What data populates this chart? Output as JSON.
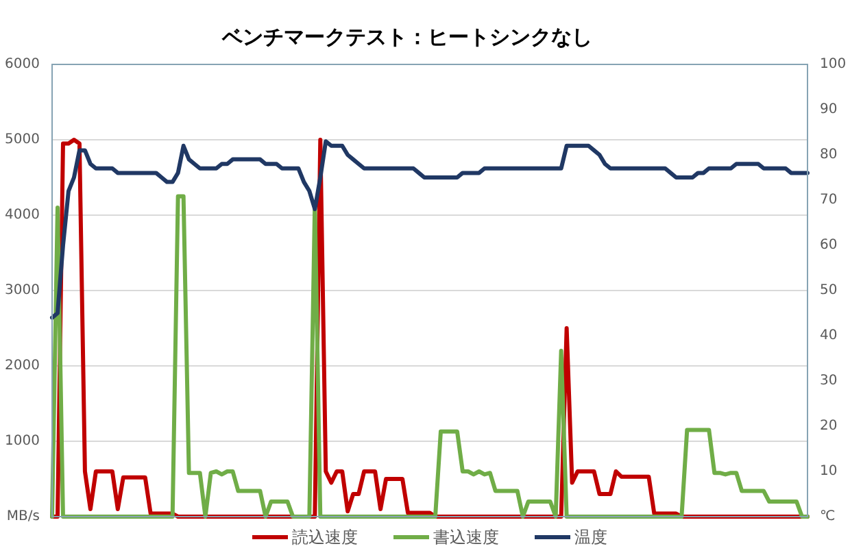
{
  "chart_data": {
    "type": "line",
    "title": "ベンチマークテスト：ヒートシンクなし",
    "categories": [
      null,
      null,
      null,
      null,
      null,
      null,
      null,
      null,
      null,
      null,
      null,
      null,
      null,
      null,
      null,
      null,
      null,
      null,
      null,
      null,
      null,
      null,
      null,
      null,
      null,
      null,
      null,
      null,
      null,
      null,
      null,
      null,
      null,
      null,
      null,
      null,
      null,
      null,
      null,
      null,
      null,
      null,
      null,
      null,
      null,
      null,
      null,
      null,
      null,
      null,
      null,
      null,
      null,
      null,
      null,
      null,
      null,
      null,
      null,
      null,
      null,
      null,
      null,
      null,
      null,
      null,
      null,
      null,
      null,
      null,
      null,
      null,
      null,
      null,
      null,
      null,
      null,
      null,
      null,
      null,
      null,
      null,
      null,
      null,
      null,
      null,
      null,
      null,
      null,
      null,
      null,
      null,
      null,
      null,
      null,
      null,
      null,
      null,
      null,
      null,
      null,
      null,
      null,
      null,
      null,
      null,
      null,
      null,
      null,
      null,
      null,
      null,
      null,
      null,
      null,
      null,
      null,
      null,
      null,
      null,
      null,
      null,
      null,
      null,
      null,
      null,
      null,
      null,
      null,
      null,
      null,
      null,
      null,
      null,
      null,
      null,
      null,
      null,
      null
    ],
    "series": [
      {
        "name": "読込速度",
        "color": "#c00000",
        "values": [
          0,
          0,
          4950,
          4950,
          5000,
          4950,
          600,
          100,
          600,
          600,
          600,
          600,
          100,
          520,
          520,
          520,
          520,
          520,
          40,
          40,
          40,
          40,
          40,
          0,
          0,
          0,
          0,
          0,
          0,
          0,
          0,
          0,
          0,
          0,
          0,
          0,
          0,
          0,
          0,
          0,
          0,
          0,
          0,
          0,
          0,
          0,
          0,
          0,
          0,
          5000,
          600,
          450,
          600,
          600,
          70,
          300,
          300,
          600,
          600,
          600,
          100,
          500,
          500,
          500,
          500,
          50,
          50,
          50,
          50,
          50,
          0,
          0,
          0,
          0,
          0,
          0,
          0,
          0,
          0,
          0,
          0,
          0,
          0,
          0,
          0,
          0,
          0,
          0,
          0,
          0,
          0,
          0,
          0,
          0,
          2500,
          450,
          600,
          600,
          600,
          600,
          300,
          300,
          300,
          600,
          530,
          530,
          530,
          530,
          530,
          530,
          40,
          40,
          40,
          40,
          40,
          0,
          0,
          0,
          0,
          0,
          0,
          0,
          0,
          0,
          0,
          0,
          0,
          0,
          0,
          0,
          0,
          0,
          0,
          0,
          0,
          0,
          0,
          0,
          0
        ]
      },
      {
        "name": "書込速度",
        "color": "#70ad47",
        "values": [
          0,
          4100,
          0,
          0,
          0,
          0,
          0,
          0,
          0,
          0,
          0,
          0,
          0,
          0,
          0,
          0,
          0,
          0,
          0,
          0,
          0,
          0,
          0,
          4250,
          4250,
          580,
          580,
          580,
          0,
          580,
          600,
          560,
          600,
          600,
          340,
          340,
          340,
          340,
          340,
          0,
          200,
          200,
          200,
          200,
          0,
          0,
          0,
          0,
          4150,
          0,
          0,
          0,
          0,
          0,
          0,
          0,
          0,
          0,
          0,
          0,
          0,
          0,
          0,
          0,
          0,
          0,
          0,
          0,
          0,
          0,
          0,
          1130,
          1130,
          1130,
          1130,
          600,
          600,
          560,
          600,
          560,
          580,
          340,
          340,
          340,
          340,
          340,
          0,
          200,
          200,
          200,
          200,
          200,
          0,
          2200,
          0,
          0,
          0,
          0,
          0,
          0,
          0,
          0,
          0,
          0,
          0,
          0,
          0,
          0,
          0,
          0,
          0,
          0,
          0,
          0,
          0,
          0,
          1150,
          1150,
          1150,
          1150,
          1150,
          580,
          580,
          560,
          580,
          580,
          340,
          340,
          340,
          340,
          340,
          200,
          200,
          200,
          200,
          200,
          200,
          0,
          0
        ]
      },
      {
        "name": "温度",
        "color": "#203864",
        "axis": "y2",
        "values": [
          44,
          45,
          60,
          72,
          75,
          81,
          81,
          78,
          77,
          77,
          77,
          77,
          76,
          76,
          76,
          76,
          76,
          76,
          76,
          76,
          75,
          74,
          74,
          76,
          82,
          79,
          78,
          77,
          77,
          77,
          77,
          78,
          78,
          79,
          79,
          79,
          79,
          79,
          79,
          78,
          78,
          78,
          77,
          77,
          77,
          77,
          74,
          72,
          68,
          75,
          83,
          82,
          82,
          82,
          80,
          79,
          78,
          77,
          77,
          77,
          77,
          77,
          77,
          77,
          77,
          77,
          77,
          76,
          75,
          75,
          75,
          75,
          75,
          75,
          75,
          76,
          76,
          76,
          76,
          77,
          77,
          77,
          77,
          77,
          77,
          77,
          77,
          77,
          77,
          77,
          77,
          77,
          77,
          77,
          82,
          82,
          82,
          82,
          82,
          81,
          80,
          78,
          77,
          77,
          77,
          77,
          77,
          77,
          77,
          77,
          77,
          77,
          77,
          76,
          75,
          75,
          75,
          75,
          76,
          76,
          77,
          77,
          77,
          77,
          77,
          78,
          78,
          78,
          78,
          78,
          77,
          77,
          77,
          77,
          77,
          76,
          76,
          76,
          76
        ]
      }
    ],
    "ylim": [
      0,
      6000
    ],
    "yticks": [
      {
        "value": 0,
        "label": "MB/s"
      },
      1000,
      2000,
      3000,
      4000,
      5000,
      6000
    ],
    "y2lim": [
      0,
      100
    ],
    "y2ticks": [
      {
        "value": 0,
        "label": "℃"
      },
      10,
      20,
      30,
      40,
      50,
      60,
      70,
      80,
      90,
      100
    ],
    "grid": "y",
    "legend": "bottom"
  }
}
